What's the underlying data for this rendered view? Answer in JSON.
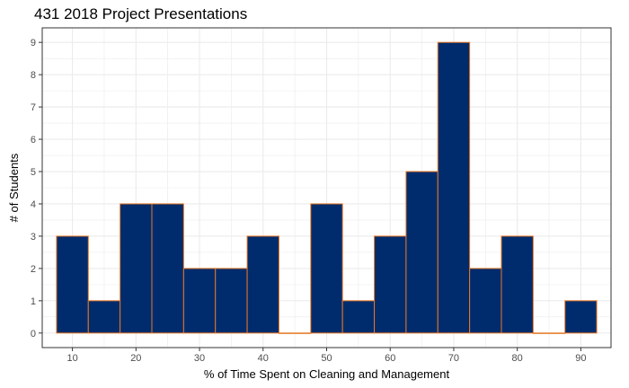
{
  "chart_data": {
    "type": "bar",
    "subtype": "histogram",
    "title": "431 2018 Project Presentations",
    "xlabel": "% of Time Spent on Cleaning and Management",
    "ylabel": "# of Students",
    "bin_width": 5,
    "bins": [
      {
        "start": 7.5,
        "end": 12.5,
        "count": 3
      },
      {
        "start": 12.5,
        "end": 17.5,
        "count": 1
      },
      {
        "start": 17.5,
        "end": 22.5,
        "count": 4
      },
      {
        "start": 22.5,
        "end": 27.5,
        "count": 4
      },
      {
        "start": 27.5,
        "end": 32.5,
        "count": 2
      },
      {
        "start": 32.5,
        "end": 37.5,
        "count": 2
      },
      {
        "start": 37.5,
        "end": 42.5,
        "count": 3
      },
      {
        "start": 42.5,
        "end": 47.5,
        "count": 0
      },
      {
        "start": 47.5,
        "end": 52.5,
        "count": 4
      },
      {
        "start": 52.5,
        "end": 57.5,
        "count": 1
      },
      {
        "start": 57.5,
        "end": 62.5,
        "count": 3
      },
      {
        "start": 62.5,
        "end": 67.5,
        "count": 5
      },
      {
        "start": 67.5,
        "end": 72.5,
        "count": 9
      },
      {
        "start": 72.5,
        "end": 77.5,
        "count": 2
      },
      {
        "start": 77.5,
        "end": 82.5,
        "count": 3
      },
      {
        "start": 82.5,
        "end": 87.5,
        "count": 0
      },
      {
        "start": 87.5,
        "end": 92.5,
        "count": 1
      }
    ],
    "x_ticks": [
      10,
      20,
      30,
      40,
      50,
      60,
      70,
      80,
      90
    ],
    "y_ticks": [
      0,
      1,
      2,
      3,
      4,
      5,
      6,
      7,
      8,
      9
    ],
    "xlim": [
      5.25,
      94.75
    ],
    "ylim": [
      -0.45,
      9.45
    ],
    "grid": true,
    "colors": {
      "fill": "#002C6E",
      "outline": "#E87722",
      "grid": "#EBEBEB",
      "border": "#333333"
    }
  }
}
